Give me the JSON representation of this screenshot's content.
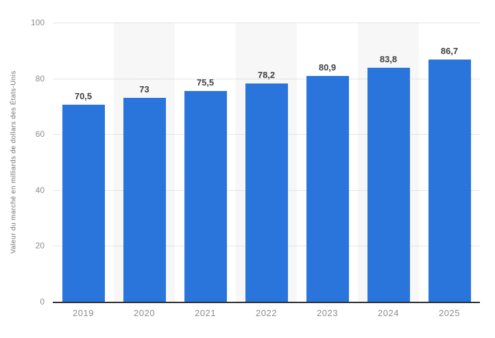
{
  "chart_data": {
    "type": "bar",
    "title": "",
    "categories": [
      "2019",
      "2020",
      "2021",
      "2022",
      "2023",
      "2024",
      "2025"
    ],
    "values": [
      70.5,
      73,
      75.5,
      78.2,
      80.9,
      83.8,
      86.7
    ],
    "value_labels": [
      "70,5",
      "73",
      "75,5",
      "78,2",
      "80,9",
      "83,8",
      "86,7"
    ],
    "xlabel": "",
    "ylabel": "Valeur du marché en milliards de dollars des États-Unis",
    "ylim": [
      0,
      100
    ],
    "yticks": [
      0,
      20,
      40,
      60,
      80,
      100
    ],
    "grid": "horizontal-dotted",
    "legend": "none",
    "striped_categories": [
      "2020",
      "2022",
      "2024"
    ],
    "colors": {
      "bar": "#2a75dc",
      "plot_band": "#f7f7f7",
      "grid_line": "#cccccc",
      "axis_line": "#2b2b2b",
      "tick_label": "#8c8c8c",
      "value_label": "#404040",
      "axis_title": "#737373",
      "background": "#ffffff"
    }
  }
}
